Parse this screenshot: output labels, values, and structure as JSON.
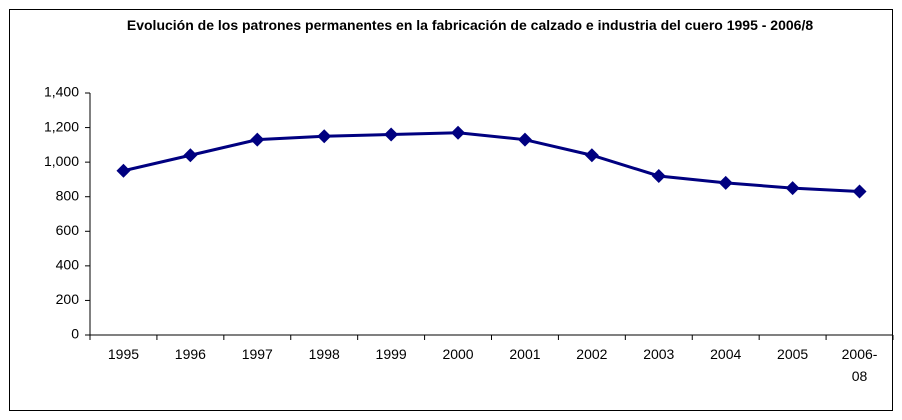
{
  "chart_data": {
    "type": "line",
    "title": "Evolución de los patrones permanentes en la fabricación de calzado e industria del cuero 1995 - 2006/8",
    "categories": [
      "1995",
      "1996",
      "1997",
      "1998",
      "1999",
      "2000",
      "2001",
      "2002",
      "2003",
      "2004",
      "2005",
      "2006-08"
    ],
    "series": [
      {
        "name": null,
        "color": "#000080",
        "values": [
          950,
          1040,
          1130,
          1150,
          1160,
          1170,
          1130,
          1040,
          920,
          880,
          850,
          830
        ]
      }
    ],
    "ylim": [
      0,
      1400
    ],
    "yticks": [
      0,
      200,
      400,
      600,
      800,
      {
        "value": 1000,
        "label": "1,000"
      },
      {
        "value": 1200,
        "label": "1,200"
      },
      {
        "value": 1400,
        "label": "1,400"
      }
    ],
    "grid": false
  }
}
